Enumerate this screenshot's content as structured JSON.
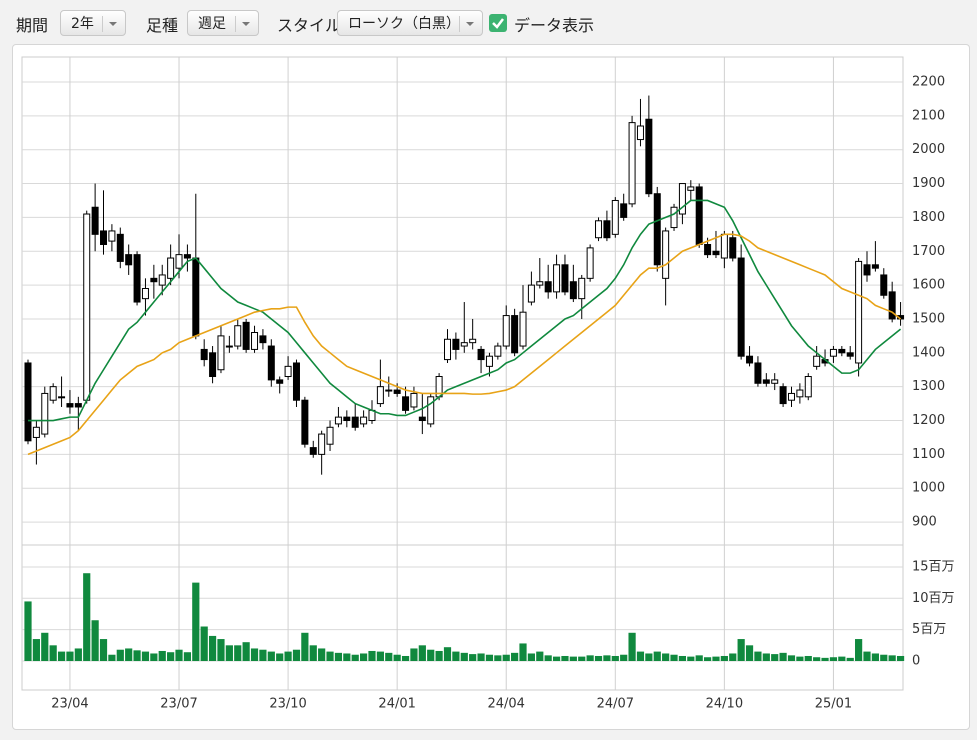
{
  "controls": {
    "period_label": "期間",
    "period": "2年",
    "bar_label": "足種",
    "bar": "週足",
    "style_label": "スタイル",
    "style": "ローソク（白黒）",
    "show_data": "データ表示"
  },
  "chart_data": {
    "type": "candlestick",
    "categories": [
      null,
      null,
      null,
      null,
      null,
      "23/04",
      null,
      null,
      null,
      null,
      null,
      null,
      null,
      null,
      null,
      null,
      null,
      null,
      "23/07",
      null,
      null,
      null,
      null,
      null,
      null,
      null,
      null,
      null,
      null,
      null,
      null,
      "23/10",
      null,
      null,
      null,
      null,
      null,
      null,
      null,
      null,
      null,
      null,
      null,
      null,
      "24/01",
      null,
      null,
      null,
      null,
      null,
      null,
      null,
      null,
      null,
      null,
      null,
      null,
      "24/04",
      null,
      null,
      null,
      null,
      null,
      null,
      null,
      null,
      null,
      null,
      null,
      null,
      "24/07",
      null,
      null,
      null,
      null,
      null,
      null,
      null,
      null,
      null,
      null,
      null,
      null,
      "24/10",
      null,
      null,
      null,
      null,
      null,
      null,
      null,
      null,
      null,
      null,
      null,
      null,
      "25/01",
      null,
      null,
      null,
      null,
      null,
      null,
      null,
      null
    ],
    "candles": [
      [
        1370,
        1380,
        1130,
        1140
      ],
      [
        1150,
        1200,
        1070,
        1180
      ],
      [
        1160,
        1300,
        1150,
        1280
      ],
      [
        1260,
        1310,
        1250,
        1300
      ],
      [
        1270,
        1330,
        1240,
        1270
      ],
      [
        1250,
        1290,
        1220,
        1240
      ],
      [
        1250,
        1270,
        1170,
        1240
      ],
      [
        1260,
        1820,
        1250,
        1810
      ],
      [
        1830,
        1900,
        1700,
        1750
      ],
      [
        1760,
        1880,
        1690,
        1720
      ],
      [
        1730,
        1780,
        1700,
        1760
      ],
      [
        1750,
        1770,
        1650,
        1670
      ],
      [
        1690,
        1720,
        1630,
        1660
      ],
      [
        1690,
        1700,
        1540,
        1550
      ],
      [
        1560,
        1620,
        1510,
        1590
      ],
      [
        1620,
        1660,
        1560,
        1610
      ],
      [
        1600,
        1660,
        1570,
        1630
      ],
      [
        1620,
        1720,
        1600,
        1680
      ],
      [
        1650,
        1750,
        1620,
        1690
      ],
      [
        1690,
        1720,
        1640,
        1680
      ],
      [
        1680,
        1870,
        1440,
        1450
      ],
      [
        1410,
        1440,
        1360,
        1380
      ],
      [
        1400,
        1420,
        1310,
        1330
      ],
      [
        1350,
        1480,
        1340,
        1450
      ],
      [
        1420,
        1450,
        1400,
        1420
      ],
      [
        1420,
        1500,
        1410,
        1480
      ],
      [
        1490,
        1500,
        1400,
        1410
      ],
      [
        1410,
        1480,
        1400,
        1460
      ],
      [
        1450,
        1470,
        1410,
        1430
      ],
      [
        1420,
        1440,
        1300,
        1320
      ],
      [
        1320,
        1330,
        1280,
        1310
      ],
      [
        1330,
        1390,
        1320,
        1360
      ],
      [
        1370,
        1380,
        1240,
        1260
      ],
      [
        1260,
        1270,
        1120,
        1130
      ],
      [
        1120,
        1140,
        1090,
        1100
      ],
      [
        1100,
        1170,
        1040,
        1160
      ],
      [
        1130,
        1200,
        1110,
        1180
      ],
      [
        1190,
        1240,
        1180,
        1210
      ],
      [
        1210,
        1230,
        1180,
        1200
      ],
      [
        1210,
        1250,
        1170,
        1180
      ],
      [
        1190,
        1230,
        1180,
        1210
      ],
      [
        1200,
        1260,
        1190,
        1230
      ],
      [
        1250,
        1380,
        1240,
        1300
      ],
      [
        1290,
        1330,
        1270,
        1290
      ],
      [
        1290,
        1310,
        1270,
        1280
      ],
      [
        1270,
        1300,
        1220,
        1230
      ],
      [
        1240,
        1300,
        1230,
        1280
      ],
      [
        1210,
        1280,
        1160,
        1200
      ],
      [
        1190,
        1280,
        1180,
        1270
      ],
      [
        1270,
        1340,
        1260,
        1330
      ],
      [
        1380,
        1470,
        1370,
        1440
      ],
      [
        1440,
        1460,
        1380,
        1410
      ],
      [
        1420,
        1550,
        1400,
        1430
      ],
      [
        1430,
        1500,
        1410,
        1440
      ],
      [
        1410,
        1420,
        1340,
        1380
      ],
      [
        1360,
        1400,
        1330,
        1390
      ],
      [
        1390,
        1430,
        1380,
        1420
      ],
      [
        1420,
        1540,
        1410,
        1510
      ],
      [
        1510,
        1530,
        1390,
        1400
      ],
      [
        1420,
        1600,
        1410,
        1520
      ],
      [
        1550,
        1640,
        1540,
        1600
      ],
      [
        1600,
        1680,
        1590,
        1610
      ],
      [
        1610,
        1660,
        1560,
        1580
      ],
      [
        1580,
        1690,
        1560,
        1660
      ],
      [
        1660,
        1690,
        1570,
        1580
      ],
      [
        1610,
        1660,
        1550,
        1560
      ],
      [
        1560,
        1630,
        1500,
        1620
      ],
      [
        1620,
        1720,
        1610,
        1710
      ],
      [
        1740,
        1800,
        1730,
        1790
      ],
      [
        1790,
        1820,
        1730,
        1740
      ],
      [
        1750,
        1860,
        1740,
        1850
      ],
      [
        1840,
        1870,
        1790,
        1800
      ],
      [
        1840,
        2100,
        1830,
        2080
      ],
      [
        2030,
        2150,
        2010,
        2070
      ],
      [
        2090,
        2160,
        1860,
        1870
      ],
      [
        1870,
        1890,
        1640,
        1660
      ],
      [
        1620,
        1770,
        1540,
        1760
      ],
      [
        1770,
        1840,
        1760,
        1830
      ],
      [
        1810,
        1900,
        1780,
        1900
      ],
      [
        1880,
        1910,
        1850,
        1890
      ],
      [
        1890,
        1900,
        1710,
        1720
      ],
      [
        1720,
        1740,
        1680,
        1690
      ],
      [
        1700,
        1760,
        1680,
        1690
      ],
      [
        1680,
        1760,
        1650,
        1750
      ],
      [
        1740,
        1760,
        1670,
        1680
      ],
      [
        1680,
        1720,
        1380,
        1390
      ],
      [
        1390,
        1420,
        1360,
        1370
      ],
      [
        1370,
        1390,
        1300,
        1310
      ],
      [
        1320,
        1340,
        1300,
        1310
      ],
      [
        1310,
        1340,
        1290,
        1320
      ],
      [
        1300,
        1310,
        1240,
        1250
      ],
      [
        1260,
        1300,
        1240,
        1280
      ],
      [
        1270,
        1310,
        1250,
        1290
      ],
      [
        1270,
        1340,
        1260,
        1330
      ],
      [
        1360,
        1420,
        1350,
        1390
      ],
      [
        1380,
        1410,
        1360,
        1370
      ],
      [
        1390,
        1420,
        1370,
        1410
      ],
      [
        1410,
        1420,
        1390,
        1400
      ],
      [
        1400,
        1420,
        1380,
        1390
      ],
      [
        1370,
        1680,
        1330,
        1670
      ],
      [
        1660,
        1700,
        1610,
        1630
      ],
      [
        1660,
        1730,
        1640,
        1650
      ],
      [
        1630,
        1650,
        1560,
        1570
      ],
      [
        1580,
        1610,
        1490,
        1500
      ],
      [
        1510,
        1550,
        1480,
        1500
      ]
    ],
    "series": [
      {
        "color": "#10893e",
        "values": [
          1200,
          1200,
          1200,
          1200,
          1205,
          1210,
          1210,
          1260,
          1310,
          1350,
          1390,
          1430,
          1470,
          1490,
          1520,
          1550,
          1580,
          1610,
          1640,
          1670,
          1680,
          1650,
          1620,
          1590,
          1570,
          1550,
          1540,
          1530,
          1520,
          1500,
          1480,
          1460,
          1430,
          1400,
          1370,
          1340,
          1310,
          1290,
          1270,
          1250,
          1240,
          1230,
          1220,
          1220,
          1215,
          1215,
          1225,
          1235,
          1250,
          1270,
          1290,
          1300,
          1310,
          1320,
          1330,
          1340,
          1350,
          1370,
          1380,
          1400,
          1420,
          1440,
          1460,
          1480,
          1500,
          1510,
          1530,
          1550,
          1570,
          1590,
          1620,
          1660,
          1710,
          1750,
          1780,
          1790,
          1800,
          1810,
          1830,
          1850,
          1850,
          1850,
          1840,
          1830,
          1790,
          1740,
          1690,
          1640,
          1600,
          1560,
          1520,
          1480,
          1450,
          1420,
          1400,
          1380,
          1360,
          1340,
          1340,
          1350,
          1380,
          1410,
          1430,
          1450,
          1470
        ]
      },
      {
        "color": "#e8a317",
        "values": [
          1100,
          1110,
          1120,
          1130,
          1140,
          1150,
          1170,
          1200,
          1230,
          1260,
          1290,
          1320,
          1340,
          1360,
          1370,
          1380,
          1400,
          1410,
          1430,
          1440,
          1450,
          1460,
          1470,
          1480,
          1490,
          1500,
          1510,
          1520,
          1525,
          1530,
          1530,
          1535,
          1535,
          1490,
          1450,
          1420,
          1400,
          1380,
          1360,
          1350,
          1340,
          1330,
          1320,
          1310,
          1300,
          1290,
          1285,
          1280,
          1280,
          1280,
          1280,
          1280,
          1280,
          1278,
          1278,
          1280,
          1285,
          1290,
          1300,
          1320,
          1340,
          1360,
          1380,
          1400,
          1420,
          1440,
          1460,
          1480,
          1500,
          1520,
          1540,
          1570,
          1600,
          1630,
          1650,
          1650,
          1660,
          1680,
          1700,
          1710,
          1720,
          1730,
          1740,
          1750,
          1750,
          1745,
          1730,
          1710,
          1700,
          1690,
          1680,
          1670,
          1660,
          1650,
          1640,
          1630,
          1610,
          1590,
          1580,
          1570,
          1560,
          1540,
          1530,
          1520,
          1500
        ]
      }
    ],
    "volume": {
      "color": "#10893e",
      "values": [
        9.5,
        3.5,
        4.5,
        2.5,
        1.5,
        1.5,
        2,
        14,
        6.5,
        3.5,
        1,
        1.8,
        2,
        1.7,
        1.5,
        1.2,
        1.6,
        1.4,
        1.8,
        1.4,
        12.5,
        5.5,
        4,
        3.5,
        2.5,
        2.5,
        3,
        2,
        1.8,
        1.5,
        1.2,
        1.5,
        1.8,
        4.5,
        2.5,
        2,
        1.5,
        1.3,
        1.2,
        1,
        1.2,
        1.6,
        1.5,
        1.3,
        1,
        0.8,
        2,
        2.5,
        1.8,
        1.6,
        2.2,
        1.5,
        1.3,
        1.1,
        1.2,
        1,
        0.9,
        1,
        1.3,
        2.8,
        1.2,
        1.5,
        0.9,
        0.7,
        0.8,
        0.7,
        0.7,
        0.9,
        0.8,
        0.9,
        0.8,
        1,
        4.5,
        1.5,
        1.2,
        1.5,
        1.2,
        1,
        0.8,
        0.7,
        0.9,
        0.6,
        0.7,
        0.8,
        1.2,
        3.5,
        2.5,
        1.5,
        1.2,
        1.1,
        1.3,
        0.9,
        0.7,
        0.8,
        0.6,
        0.5,
        0.6,
        0.7,
        0.5,
        3.5,
        1.5,
        1.2,
        1,
        0.9,
        0.8
      ],
      "ylim": [
        0,
        18.5
      ],
      "yticks": [
        0,
        {
          "value": 5,
          "label": "5百万"
        },
        {
          "value": 10,
          "label": "10百万"
        },
        {
          "value": 15,
          "label": "15百万"
        }
      ]
    },
    "ylim": [
      850,
      2270
    ],
    "yticks": [
      900,
      1000,
      1100,
      1200,
      1300,
      1400,
      1500,
      1600,
      1700,
      1800,
      1900,
      2000,
      2100,
      2200
    ],
    "grid": true
  }
}
